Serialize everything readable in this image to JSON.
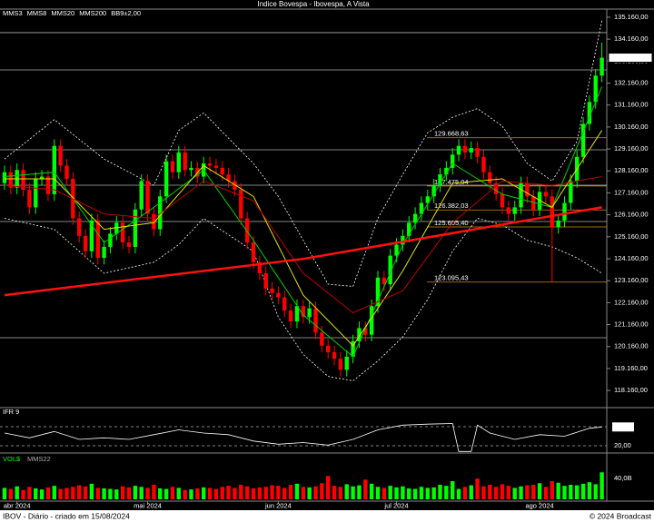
{
  "chart_data": {
    "type": "candlestick",
    "title": "Indice Bovespa - Ibovespa, A Vista",
    "legend": [
      "MMS3",
      "MMS8",
      "MMS20",
      "MMS200",
      "BB9±2,00"
    ],
    "ylim": [
      117420,
      135530
    ],
    "yticks": [
      {
        "value": 118160,
        "label": "118.160,00"
      },
      {
        "value": 119160,
        "label": "119.160,00"
      },
      {
        "value": 120160,
        "label": "120.160,00"
      },
      {
        "value": 121160,
        "label": "121.160,00"
      },
      {
        "value": 122160,
        "label": "122.160,00"
      },
      {
        "value": 123160,
        "label": "123.160,00"
      },
      {
        "value": 124160,
        "label": "124.160,00"
      },
      {
        "value": 125160,
        "label": "125.160,00"
      },
      {
        "value": 126160,
        "label": "126.160,00"
      },
      {
        "value": 127160,
        "label": "127.160,00"
      },
      {
        "value": 128160,
        "label": "128.160,00"
      },
      {
        "value": 129160,
        "label": "129.160,00"
      },
      {
        "value": 130160,
        "label": "130.160,00"
      },
      {
        "value": 131160,
        "label": "131.160,00"
      },
      {
        "value": 132160,
        "label": "132.160,00"
      },
      {
        "value": 133160,
        "label": "133.160,00"
      },
      {
        "value": 134160,
        "label": "134.160,00"
      },
      {
        "value": 135160,
        "label": "135.160,00"
      }
    ],
    "xticks": [
      {
        "value": 2,
        "label": "abr 2024"
      },
      {
        "value": 23,
        "label": "mai 2024"
      },
      {
        "value": 44,
        "label": "jun 2024"
      },
      {
        "value": 63,
        "label": "jul 2024"
      },
      {
        "value": 86,
        "label": "ago 2024"
      }
    ],
    "last_price": {
      "value": 133316.99,
      "label": "133.316,99"
    },
    "up_color": "#00ff00",
    "down_color": "#ff0000",
    "open": [
      127600,
      128100,
      127400,
      128200,
      127300,
      126500,
      127800,
      127900,
      127100,
      129300,
      128400,
      127800,
      126000,
      125200,
      124500,
      125900,
      124200,
      124700,
      125300,
      125800,
      124900,
      124700,
      126400,
      127700,
      126200,
      125500,
      127000,
      128600,
      128100,
      129000,
      128200,
      128300,
      127900,
      128500,
      128400,
      128300,
      128000,
      127700,
      127300,
      126000,
      124900,
      124000,
      123500,
      122800,
      122600,
      122400,
      121800,
      121300,
      122000,
      121500,
      121900,
      120800,
      120200,
      119900,
      119600,
      119100,
      119700,
      120400,
      121000,
      120700,
      122000,
      123300,
      123000,
      124300,
      124800,
      125200,
      125800,
      126200,
      126700,
      127000,
      127500,
      128000,
      128300,
      128900,
      129300,
      129000,
      129200,
      128800,
      128100,
      127600,
      127100,
      126500,
      126200,
      126500,
      127600,
      127000,
      126400,
      127200,
      127000,
      125600,
      125900,
      126700,
      127700,
      128800,
      130300,
      131300,
      132500
    ],
    "high": [
      128400,
      128400,
      128500,
      128500,
      127600,
      128100,
      128200,
      128200,
      129600,
      129600,
      128700,
      128100,
      126300,
      125500,
      126200,
      126200,
      125000,
      125600,
      126100,
      126100,
      125200,
      126700,
      128000,
      128000,
      126500,
      127300,
      128900,
      128900,
      129300,
      129300,
      128600,
      128600,
      128800,
      128800,
      128700,
      128600,
      128300,
      128000,
      127600,
      126300,
      125200,
      124300,
      123800,
      123100,
      122900,
      122700,
      122100,
      122300,
      122300,
      122200,
      122200,
      121100,
      120500,
      120200,
      119900,
      120000,
      120700,
      121300,
      121300,
      122300,
      123600,
      123600,
      124600,
      125100,
      125500,
      126100,
      126500,
      127000,
      127300,
      127800,
      128300,
      128600,
      129200,
      129600,
      129600,
      129500,
      129500,
      129100,
      128400,
      127900,
      127400,
      126800,
      126800,
      127900,
      127900,
      127300,
      127500,
      127500,
      127300,
      126200,
      127000,
      128000,
      129100,
      130600,
      131600,
      132800,
      134000
    ],
    "low": [
      127300,
      127100,
      127100,
      127000,
      126200,
      126200,
      127500,
      126800,
      126800,
      128100,
      127500,
      125700,
      124900,
      124200,
      124200,
      123900,
      123900,
      124400,
      125000,
      124600,
      124400,
      124400,
      126100,
      125900,
      125200,
      125200,
      126700,
      127800,
      127800,
      127900,
      127900,
      127600,
      127600,
      128100,
      128000,
      127700,
      127400,
      127000,
      125700,
      124600,
      123700,
      123200,
      122500,
      122300,
      122100,
      121500,
      121000,
      121000,
      121200,
      121200,
      120500,
      119900,
      119600,
      119300,
      118800,
      118800,
      119400,
      120100,
      120400,
      120400,
      121700,
      122700,
      122700,
      124000,
      124500,
      124900,
      125500,
      125900,
      126400,
      126700,
      127200,
      127700,
      128000,
      128600,
      128700,
      128700,
      128500,
      127800,
      127300,
      126800,
      126200,
      125900,
      125900,
      126200,
      126700,
      126100,
      126100,
      126700,
      123100,
      125300,
      125600,
      126400,
      127400,
      128500,
      130000,
      131000,
      132200
    ],
    "close": [
      128100,
      127400,
      128200,
      127300,
      126500,
      127800,
      127900,
      127100,
      129300,
      128400,
      127800,
      126000,
      125200,
      124500,
      125900,
      124200,
      124700,
      125300,
      125800,
      124900,
      124700,
      126400,
      127700,
      126200,
      125500,
      127000,
      128600,
      128100,
      129000,
      128200,
      128300,
      127900,
      128500,
      128400,
      128300,
      128000,
      127700,
      127300,
      126000,
      124900,
      124000,
      123500,
      122800,
      122600,
      122400,
      121800,
      121300,
      122000,
      121500,
      121900,
      120800,
      120200,
      119900,
      119600,
      119100,
      119700,
      120400,
      121000,
      120700,
      122000,
      123300,
      123000,
      124300,
      124800,
      125200,
      125800,
      126200,
      126700,
      127000,
      127500,
      128000,
      128300,
      128900,
      129300,
      129000,
      129200,
      128800,
      128100,
      127600,
      127100,
      126500,
      126200,
      126500,
      127600,
      127000,
      126400,
      127200,
      127000,
      125600,
      125900,
      126700,
      127700,
      128800,
      130300,
      131300,
      132500,
      133316.99
    ],
    "overlays": [
      {
        "name": "MMS3",
        "color": "#00d000",
        "x": [
          0,
          8,
          16,
          24,
          32,
          40,
          48,
          56,
          64,
          72,
          80,
          88,
          96
        ],
        "values": [
          127900,
          128100,
          124900,
          126500,
          128200,
          125000,
          121600,
          119700,
          124800,
          128500,
          127100,
          126500,
          132000
        ]
      },
      {
        "name": "MMS8",
        "color": "#e6e600",
        "x": [
          0,
          8,
          16,
          24,
          32,
          40,
          48,
          56,
          64,
          72,
          80,
          88,
          96
        ],
        "values": [
          127800,
          127800,
          125500,
          125800,
          128400,
          127000,
          122500,
          120200,
          123600,
          127600,
          127800,
          126500,
          130000
        ]
      },
      {
        "name": "MMS20",
        "color": "#c00000",
        "x": [
          0,
          8,
          16,
          24,
          32,
          40,
          48,
          56,
          64,
          72,
          80,
          88,
          96
        ],
        "values": [
          127500,
          127300,
          126200,
          126000,
          127700,
          126800,
          123500,
          121700,
          122700,
          125800,
          127700,
          127500,
          127900
        ]
      },
      {
        "name": "MMS200",
        "color": "#ff1010",
        "x": [
          0,
          48,
          96
        ],
        "values": [
          122500,
          124150,
          126500
        ]
      }
    ],
    "bands": {
      "color": "#ffffff",
      "x": [
        0,
        8,
        16,
        24,
        28,
        32,
        40,
        44,
        48,
        52,
        56,
        60,
        64,
        68,
        72,
        76,
        80,
        84,
        88,
        92,
        96
      ],
      "upper": [
        128700,
        130500,
        128700,
        127500,
        130000,
        130800,
        128500,
        127000,
        125000,
        123000,
        122900,
        126000,
        128000,
        129900,
        130600,
        131000,
        130200,
        128500,
        127700,
        129500,
        135000
      ],
      "lower": [
        126000,
        125500,
        123500,
        124000,
        124800,
        126000,
        124500,
        121500,
        119800,
        118800,
        118600,
        119500,
        120600,
        122300,
        124500,
        126000,
        125700,
        125000,
        124700,
        124200,
        123500
      ]
    },
    "levels": [
      134457,
      132761,
      129122,
      127509,
      125855,
      120561
    ],
    "fib_levels": [
      {
        "value": 129668.63,
        "label": "129.668,63"
      },
      {
        "value": 127475.04,
        "label": "127.475,04"
      },
      {
        "value": 126382.03,
        "label": "126.382,03"
      },
      {
        "value": 125605.4,
        "label": "125.605,40"
      },
      {
        "value": 123095.43,
        "label": "123.095,43"
      }
    ],
    "rsi": {
      "type": "line",
      "title": "IFR 9",
      "color": "#ffffff",
      "ylim": [
        0,
        100
      ],
      "ref_lines": [
        80,
        20
      ],
      "x": [
        0,
        4,
        8,
        12,
        16,
        20,
        24,
        28,
        32,
        36,
        40,
        44,
        48,
        52,
        56,
        60,
        64,
        68,
        72,
        73,
        75,
        76,
        78,
        82,
        86,
        90,
        94,
        96
      ],
      "values": [
        60,
        45,
        65,
        40,
        45,
        40,
        55,
        70,
        60,
        55,
        35,
        25,
        30,
        22,
        40,
        70,
        85,
        88,
        90,
        2,
        2,
        85,
        60,
        40,
        55,
        50,
        75,
        79.11
      ],
      "last_label": {
        "value": 79.11,
        "label": "79,11"
      },
      "yticks": [
        {
          "value": 20,
          "label": "20,00"
        }
      ]
    },
    "volume": {
      "type": "bar",
      "title": "VOL$",
      "average_name": "MMS22",
      "ylim": [
        0,
        70
      ],
      "yticks": [
        {
          "value": 40,
          "label": "40,0B"
        }
      ],
      "values": [
        22,
        20,
        25,
        18,
        24,
        21,
        19,
        23,
        26,
        20,
        22,
        24,
        27,
        25,
        30,
        22,
        21,
        20,
        19,
        25,
        23,
        26,
        24,
        22,
        28,
        21,
        20,
        24,
        22,
        18,
        19,
        21,
        23,
        22,
        20,
        24,
        26,
        22,
        28,
        25,
        21,
        23,
        24,
        27,
        26,
        22,
        28,
        30,
        24,
        23,
        25,
        31,
        45,
        26,
        24,
        29,
        25,
        27,
        38,
        30,
        24,
        22,
        26,
        23,
        25,
        21,
        20,
        24,
        22,
        23,
        28,
        26,
        35,
        20,
        24,
        27,
        40,
        25,
        28,
        24,
        29,
        26,
        22,
        25,
        27,
        28,
        31,
        24,
        35,
        32,
        26,
        28,
        27,
        30,
        33,
        29,
        52
      ]
    },
    "footer_left": "IBOV - Diário - criado em 15/08/2024",
    "footer_right": "© 2024 Broadcast"
  }
}
